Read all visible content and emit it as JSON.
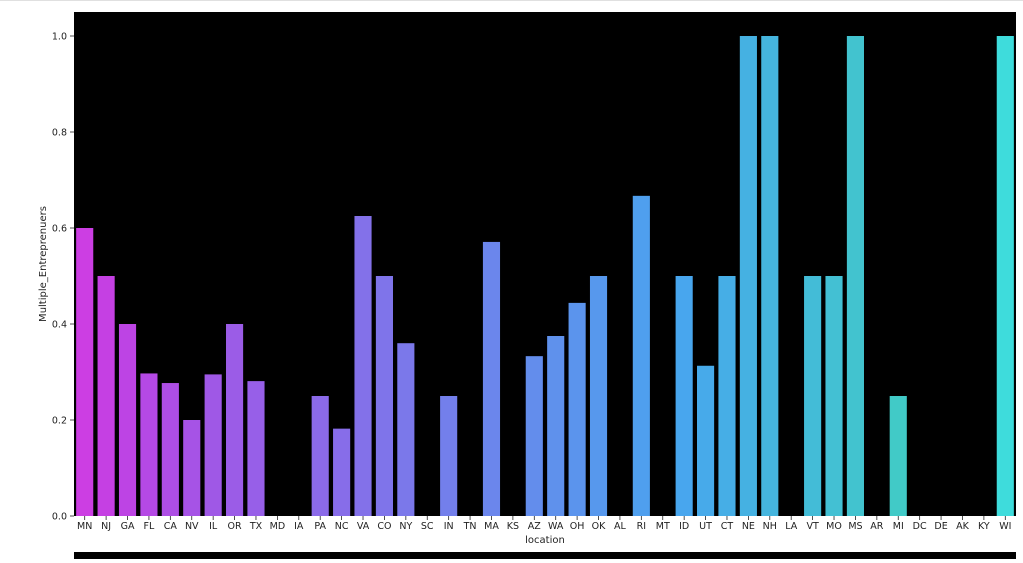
{
  "chart_data": {
    "type": "bar",
    "xlabel": "location",
    "ylabel": "Multiple_Entreprenuers",
    "ylim": [
      0,
      1.05
    ],
    "yticks": [
      "0.0",
      "0.2",
      "0.4",
      "0.6",
      "0.8",
      "1.0"
    ],
    "ytick_values": [
      0,
      0.2,
      0.4,
      0.6,
      0.8,
      1.0
    ],
    "background": "#000000",
    "categories": [
      "MN",
      "NJ",
      "GA",
      "FL",
      "CA",
      "NV",
      "IL",
      "OR",
      "TX",
      "MD",
      "IA",
      "PA",
      "NC",
      "VA",
      "CO",
      "NY",
      "SC",
      "IN",
      "TN",
      "MA",
      "KS",
      "AZ",
      "WA",
      "OH",
      "OK",
      "AL",
      "RI",
      "MT",
      "ID",
      "UT",
      "CT",
      "NE",
      "NH",
      "LA",
      "VT",
      "MO",
      "MS",
      "AR",
      "MI",
      "DC",
      "DE",
      "AK",
      "KY",
      "WI"
    ],
    "values": [
      0.6,
      0.5,
      0.4,
      0.297,
      0.277,
      0.2,
      0.295,
      0.4,
      0.281,
      0,
      0,
      0.25,
      0.182,
      0.625,
      0.5,
      0.36,
      0,
      0.25,
      0,
      0.571,
      0,
      0.333,
      0.375,
      0.444,
      0.5,
      0,
      0.667,
      0,
      0.5,
      0.313,
      0.5,
      1.0,
      1.0,
      0,
      0.5,
      0.5,
      1.0,
      0,
      0.25,
      0,
      0,
      0,
      0,
      1.0
    ],
    "colors": [
      "#cc3ee3",
      "#c540e3",
      "#bd44e4",
      "#b549e5",
      "#ae4ee5",
      "#a653e6",
      "#9f58e6",
      "#9b5ce7",
      "#975fe8",
      "#9363e8",
      "#8f66e8",
      "#8b6ae9",
      "#876de9",
      "#8371e9",
      "#7f74ea",
      "#7b78ea",
      "#777ceb",
      "#737feb",
      "#6f83eb",
      "#6b86ec",
      "#678aec",
      "#638dec",
      "#5f91ec",
      "#5b94ed",
      "#5798ed",
      "#539bed",
      "#4f9fee",
      "#4ba2ee",
      "#48a6ee",
      "#47aaea",
      "#46aee6",
      "#45b1e2",
      "#45b5de",
      "#44b8da",
      "#43bcd7",
      "#43c0d3",
      "#42c3cf",
      "#42c7cb",
      "#41cac7",
      "#40cec3",
      "#40d1bf",
      "#3fd4bb",
      "#3fd8b8",
      "#3edcdc"
    ]
  }
}
